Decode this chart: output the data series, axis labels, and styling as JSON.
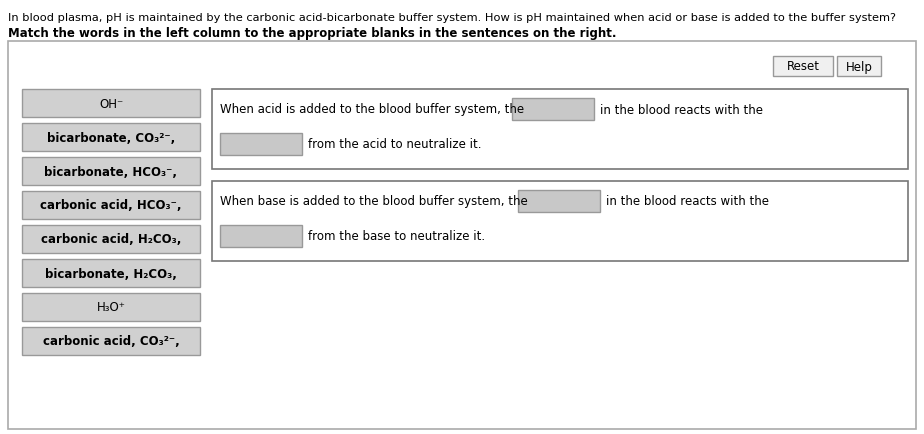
{
  "title_line1": "In blood plasma, pH is maintained by the carbonic acid-bicarbonate buffer system. How is pH maintained when acid or base is added to the buffer system?",
  "title_line2": "Match the words in the left column to the appropriate blanks in the sentences on the right.",
  "left_items": [
    "OH⁻",
    "bicarbonate, CO₃²⁻,",
    "bicarbonate, HCO₃⁻,",
    "carbonic acid, HCO₃⁻,",
    "carbonic acid, H₂CO₃,",
    "bicarbonate, H₂CO₃,",
    "H₃O⁺",
    "carbonic acid, CO₃²⁻,"
  ],
  "left_items_bold": [
    false,
    true,
    true,
    true,
    true,
    true,
    false,
    true
  ],
  "sentence1_part1": "When acid is added to the blood buffer system, the",
  "sentence1_part2": "in the blood reacts with the",
  "sentence1_line2": "from the acid to neutralize it.",
  "sentence2_part1": "When base is added to the blood buffer system, the",
  "sentence2_part2": "in the blood reacts with the",
  "sentence2_line2": "from the base to neutralize it.",
  "bg_color": "#ffffff",
  "box_bg": "#d0d0d0",
  "box_border": "#999999",
  "panel_border": "#999999",
  "panel_bg": "#ffffff",
  "blank_box_color": "#c8c8c8",
  "button_bg": "#f0f0f0",
  "button_border": "#999999",
  "text_color": "#000000",
  "outer_panel_border": "#aaaaaa"
}
